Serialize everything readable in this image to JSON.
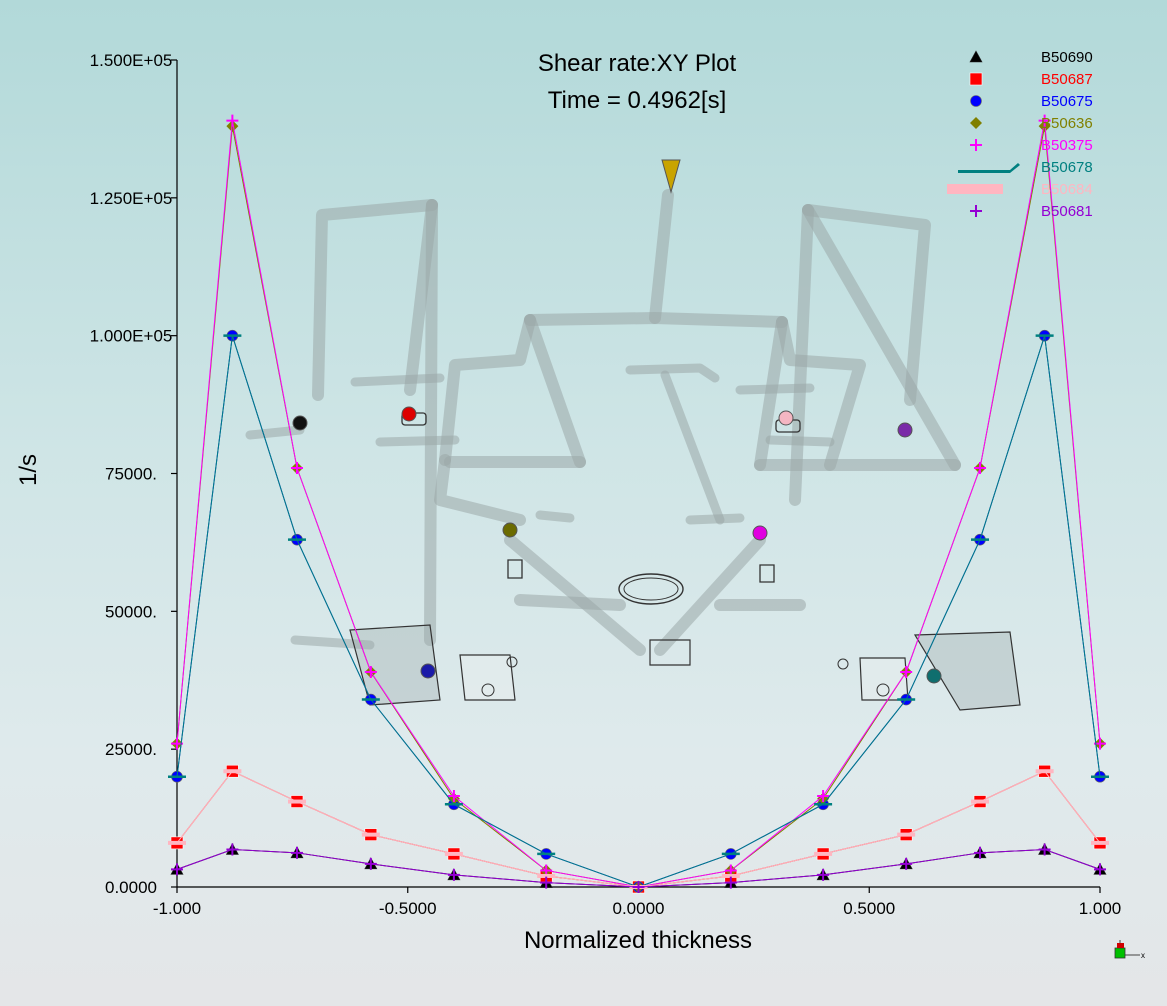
{
  "colors": {
    "B50690": "#000000",
    "B50687": "#ff0000",
    "B50675": "#0000ff",
    "B50636": "#808000",
    "B50375": "#ff00ff",
    "B50678": "#008080",
    "B50684": "#ffb6c1",
    "B50681": "#9400d3"
  },
  "chart_data": {
    "type": "line",
    "title": "Shear rate:XY Plot",
    "subtitle": "Time = 0.4962[s]",
    "xlabel": "Normalized thickness",
    "ylabel": "1/s",
    "xlim": [
      -1.0,
      1.0
    ],
    "ylim": [
      0,
      150000
    ],
    "x_ticks": [
      {
        "value": -1.0,
        "label": "-1.000"
      },
      {
        "value": -0.5,
        "label": "-0.5000"
      },
      {
        "value": 0.0,
        "label": "0.0000"
      },
      {
        "value": 0.5,
        "label": "0.5000"
      },
      {
        "value": 1.0,
        "label": "1.000"
      }
    ],
    "y_ticks": [
      {
        "value": 0,
        "label": "0.0000"
      },
      {
        "value": 25000,
        "label": "25000."
      },
      {
        "value": 50000,
        "label": "50000."
      },
      {
        "value": 75000,
        "label": "75000."
      },
      {
        "value": 100000,
        "label": "1.000E+05"
      },
      {
        "value": 125000,
        "label": "1.250E+05"
      },
      {
        "value": 150000,
        "label": "1.500E+05"
      }
    ],
    "legend_position": "top-right",
    "x": [
      -1.0,
      -0.88,
      -0.74,
      -0.58,
      -0.4,
      -0.2,
      0.0,
      0.2,
      0.4,
      0.58,
      0.74,
      0.88,
      1.0
    ],
    "series": [
      {
        "name": "B50690",
        "marker": "triangle",
        "color": "#000000",
        "values": [
          3200,
          6800,
          6200,
          4200,
          2200,
          800,
          0,
          800,
          2200,
          4200,
          6200,
          6800,
          3200
        ]
      },
      {
        "name": "B50687",
        "marker": "square",
        "color": "#ff0000",
        "values": [
          8000,
          21000,
          15500,
          9500,
          6000,
          2000,
          0,
          2000,
          6000,
          9500,
          15500,
          21000,
          8000
        ]
      },
      {
        "name": "B50675",
        "marker": "circle",
        "color": "#0000ff",
        "values": [
          20000,
          100000,
          63000,
          34000,
          15000,
          6000,
          0,
          6000,
          15000,
          34000,
          63000,
          100000,
          20000
        ]
      },
      {
        "name": "B50636",
        "marker": "diamond",
        "color": "#808000",
        "values": [
          26000,
          138000,
          76000,
          39000,
          16000,
          3000,
          0,
          3000,
          16000,
          39000,
          76000,
          138000,
          26000
        ]
      },
      {
        "name": "B50375",
        "marker": "plus",
        "color": "#ff00ff",
        "values": [
          26000,
          139000,
          76000,
          39000,
          16500,
          3000,
          0,
          3000,
          16500,
          39000,
          76000,
          139000,
          26000
        ]
      },
      {
        "name": "B50678",
        "marker": "arrow",
        "color": "#008080",
        "values": [
          20000,
          100000,
          63000,
          34000,
          15000,
          6000,
          0,
          6000,
          15000,
          34000,
          63000,
          100000,
          20000
        ]
      },
      {
        "name": "B50684",
        "marker": "bar",
        "color": "#ffb6c1",
        "values": [
          8000,
          21000,
          15500,
          9500,
          6000,
          2000,
          0,
          2000,
          6000,
          9500,
          15500,
          21000,
          8000
        ]
      },
      {
        "name": "B50681",
        "marker": "plus",
        "color": "#9400d3",
        "values": [
          3200,
          6800,
          6200,
          4200,
          2200,
          800,
          0,
          800,
          2200,
          4200,
          6200,
          6800,
          3200
        ]
      }
    ]
  },
  "probe_labels": [
    "B50690",
    "B50687",
    "B50675",
    "B50636",
    "B50375",
    "B50678",
    "B50684",
    "B50681"
  ],
  "view_triad_axis_label": "x"
}
